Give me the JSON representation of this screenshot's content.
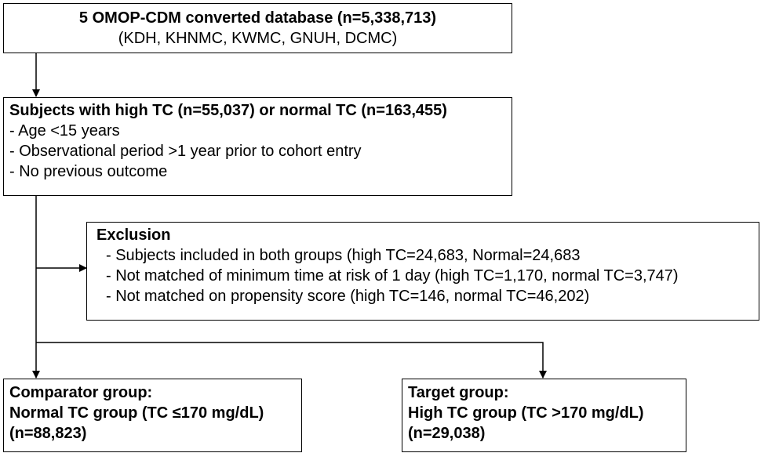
{
  "database": {
    "title": "5 OMOP-CDM converted database (n=5,338,713)",
    "sites": "(KDH, KHNMC, KWMC, GNUH, DCMC)"
  },
  "subjects": {
    "title": "Subjects with high TC (n=55,037) or normal TC (n=163,455)",
    "criteria": [
      "- Age <15 years",
      "- Observational period >1 year prior to cohort entry",
      "- No previous outcome"
    ]
  },
  "exclusion": {
    "title": "Exclusion",
    "items": [
      "- Subjects included in both groups (high TC=24,683, Normal=24,683",
      "- Not matched of minimum time at risk of 1 day (high TC=1,170, normal TC=3,747)",
      "- Not matched on propensity score (high TC=146, normal TC=46,202)"
    ]
  },
  "comparator": {
    "line1": "Comparator group:",
    "line2": "Normal TC group (TC ≤170 mg/dL)",
    "line3": "(n=88,823)"
  },
  "target": {
    "line1": "Target group:",
    "line2": "High TC group (TC >170 mg/dL)",
    "line3": "(n=29,038)"
  }
}
